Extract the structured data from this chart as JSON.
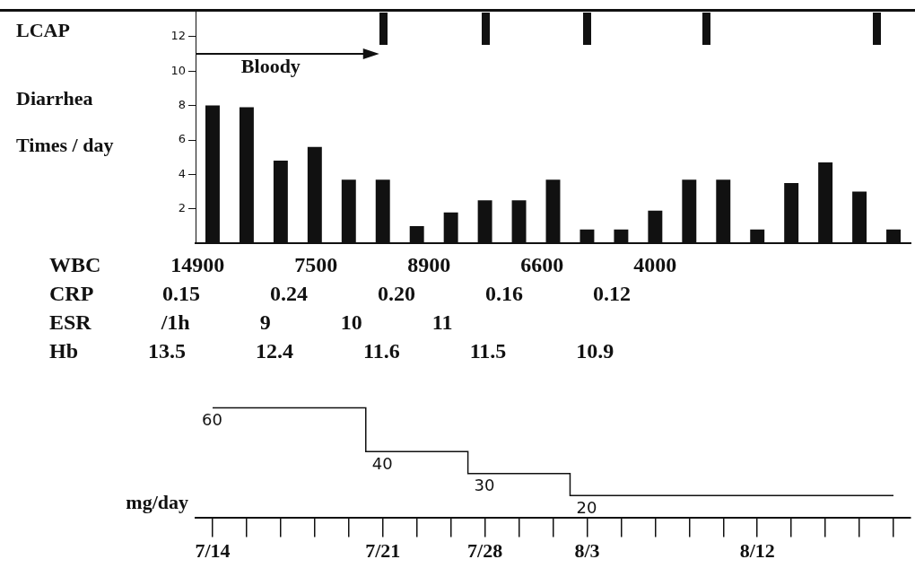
{
  "chart_data": [
    {
      "type": "bar",
      "ylabel": "Diarrhea Times / day",
      "categories": [
        null,
        null,
        null,
        null,
        null,
        null,
        null,
        null,
        null,
        null,
        null,
        null,
        null,
        null,
        null,
        null,
        null,
        null,
        null,
        null,
        null
      ],
      "series": [
        {
          "color": "#111111",
          "values": [
            8.0,
            7.9,
            4.8,
            5.6,
            3.7,
            3.7,
            1.0,
            1.8,
            2.5,
            2.5,
            3.7,
            0.8,
            0.8,
            1.9,
            3.7,
            3.7,
            0.8,
            3.5,
            4.7,
            3.0,
            0.8
          ]
        }
      ],
      "ylim": [
        0,
        13.5
      ],
      "yticks": [
        2,
        4,
        6,
        8,
        10,
        12
      ],
      "annotations": [
        "LCAP",
        "Bloody"
      ]
    },
    {
      "type": "other",
      "annotations": [
        "WBC 14900 7500 8900 6600 4000",
        "CRP 0.15 0.24 0.20 0.16 0.12",
        "ESR /1h 9 10 11",
        "Hb 13.5 12.4 11.6 11.5 10.9"
      ]
    },
    {
      "type": "step",
      "ylabel": "mg/day",
      "categories": [
        "7/14",
        null,
        null,
        null,
        null,
        "7/21",
        null,
        null,
        "7/28",
        null,
        null,
        "8/3",
        null,
        null,
        null,
        null,
        "8/12",
        null,
        null,
        null,
        null
      ],
      "series": [
        {
          "color": "#111111",
          "values": [
            60,
            60,
            60,
            60,
            60,
            40,
            40,
            40,
            30,
            30,
            30,
            20,
            20,
            20,
            20,
            20,
            20,
            20,
            20,
            20,
            20
          ],
          "value_labels": [
            "60",
            null,
            null,
            null,
            null,
            "40",
            null,
            null,
            "30",
            null,
            null,
            "20",
            null,
            null,
            null,
            null,
            null,
            null,
            null,
            null,
            null
          ]
        }
      ]
    }
  ]
}
